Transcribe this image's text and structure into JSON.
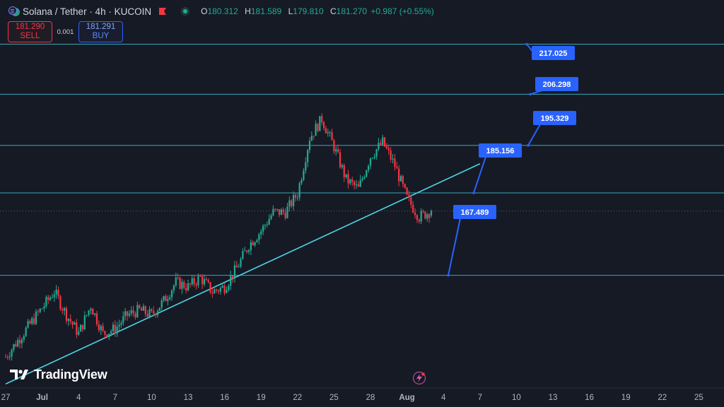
{
  "header": {
    "title": "Solana / Tether · 4h · KUCOIN",
    "ohlc": [
      {
        "key": "O",
        "value": "180.312"
      },
      {
        "key": "H",
        "value": "181.589"
      },
      {
        "key": "L",
        "value": "179.810"
      },
      {
        "key": "C",
        "value": "181.270"
      }
    ],
    "change": "+0.987 (+0.55%)"
  },
  "trade": {
    "sell_price": "181.290",
    "sell_label": "SELL",
    "spread": "0.001",
    "buy_price": "181.291",
    "buy_label": "BUY"
  },
  "brand": "TradingView",
  "colors": {
    "background": "#161a25",
    "up": "#22ab94",
    "down": "#f23645",
    "hline": "#3cc2d4",
    "trendline": "#4dd6e6",
    "callout": "#2962ff"
  },
  "icons": [
    "solana-tether-icon",
    "flag-icon",
    "market-status-icon",
    "tradingview-logo-icon",
    "lightning-icon"
  ],
  "chart_data": {
    "type": "candlestick",
    "timeframe": "4h",
    "x_tick_labels": [
      "27",
      "Jul",
      "4",
      "7",
      "10",
      "13",
      "16",
      "19",
      "22",
      "25",
      "28",
      "Aug",
      "4",
      "7",
      "10",
      "13",
      "16",
      "19",
      "22",
      "25"
    ],
    "xlim": [
      "Jun 27",
      "Aug 26"
    ],
    "ylim": [
      143.5,
      226.5
    ],
    "grid": false,
    "horizontal_levels": [
      217.025,
      206.298,
      195.329,
      185.156,
      167.489
    ],
    "level_labels": [
      "217.025",
      "206.298",
      "195.329",
      "185.156",
      "167.489"
    ],
    "trendline": {
      "start": [
        "Jun 27",
        144.2
      ],
      "end": [
        "Aug 5",
        191.4
      ]
    },
    "close_path": [
      [
        "Jun 27",
        150
      ],
      [
        "Jun 29",
        157
      ],
      [
        "Jul 1",
        164
      ],
      [
        "Jul 2",
        159
      ],
      [
        "Jul 3",
        155
      ],
      [
        "Jul 4",
        161
      ],
      [
        "Jul 5",
        155
      ],
      [
        "Jul 6",
        156
      ],
      [
        "Jul 7",
        159
      ],
      [
        "Jul 8",
        160
      ],
      [
        "Jul 9",
        159
      ],
      [
        "Jul 10",
        162
      ],
      [
        "Jul 11",
        166
      ],
      [
        "Jul 12",
        165
      ],
      [
        "Jul 13",
        167
      ],
      [
        "Jul 14",
        164
      ],
      [
        "Jul 15",
        165
      ],
      [
        "Jul 16",
        169
      ],
      [
        "Jul 17",
        174
      ],
      [
        "Jul 18",
        177
      ],
      [
        "Jul 19",
        181
      ],
      [
        "Jul 20",
        181
      ],
      [
        "Jul 21",
        185
      ],
      [
        "Jul 22",
        197
      ],
      [
        "Jul 23",
        201
      ],
      [
        "Jul 24",
        195
      ],
      [
        "Jul 25",
        188
      ],
      [
        "Jul 26",
        186
      ],
      [
        "Jul 27",
        193
      ],
      [
        "Jul 28",
        196
      ],
      [
        "Jul 29",
        191
      ],
      [
        "Jul 30",
        184
      ],
      [
        "Jul 31",
        180
      ],
      [
        "Aug 1",
        181.27
      ]
    ],
    "last": {
      "open": 180.312,
      "high": 181.589,
      "low": 179.81,
      "close": 181.27
    }
  }
}
